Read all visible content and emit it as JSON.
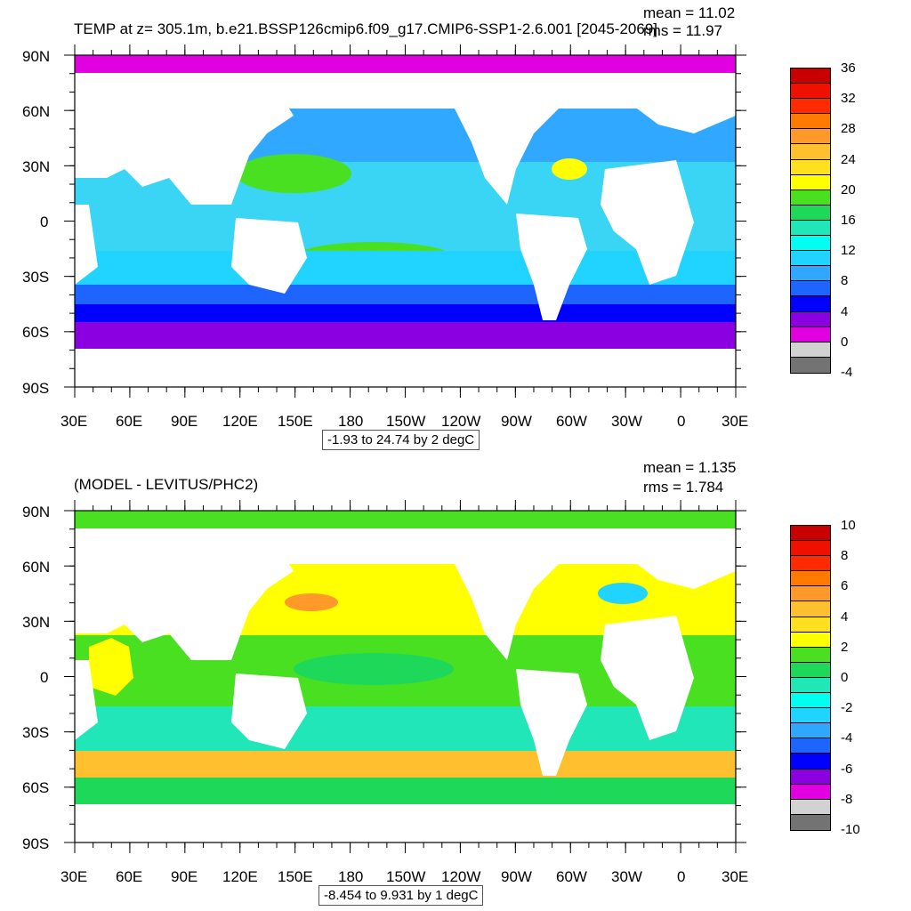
{
  "colors": {
    "ocean_top": "#3ad5f5",
    "ocean_bot": "#1fd96a",
    "land": "#ffffff"
  },
  "panels": [
    {
      "title": "TEMP at z= 305.1m, b.e21.BSSP126cmip6.f09_g17.CMIP6-SSP1-2.6.001 [2045-2069]",
      "stats_mean": "mean = 11.02",
      "stats_rms": "rms = 11.97",
      "range_label": "-1.93 to 24.74 by 2 degC",
      "lat_ticks": [
        "90N",
        "60N",
        "30N",
        "0",
        "30S",
        "60S",
        "90S"
      ],
      "lon_ticks": [
        "30E",
        "60E",
        "90E",
        "120E",
        "150E",
        "180",
        "150W",
        "120W",
        "90W",
        "60W",
        "30W",
        "0",
        "30E"
      ],
      "colorbar": {
        "labels": [
          "36",
          "32",
          "28",
          "24",
          "20",
          "16",
          "12",
          "8",
          "4",
          "0",
          "-4"
        ],
        "colors": [
          "#c80000",
          "#f01000",
          "#ff2a00",
          "#ff7a00",
          "#ff9a2a",
          "#ffc030",
          "#ffe020",
          "#ffff00",
          "#48e020",
          "#1ed85a",
          "#20e6b8",
          "#00fff0",
          "#20d4ff",
          "#30a8ff",
          "#1e64ff",
          "#0000ff",
          "#8a00e0",
          "#e000e0",
          "#d2d2d2",
          "#737373"
        ]
      }
    },
    {
      "title": "(MODEL - LEVITUS/PHC2)",
      "stats_mean": "mean = 1.135",
      "stats_rms": "rms = 1.784",
      "range_label": "-8.454 to 9.931 by 1 degC",
      "lat_ticks": [
        "90N",
        "60N",
        "30N",
        "0",
        "30S",
        "60S",
        "90S"
      ],
      "lon_ticks": [
        "30E",
        "60E",
        "90E",
        "120E",
        "150E",
        "180",
        "150W",
        "120W",
        "90W",
        "60W",
        "30W",
        "0",
        "30E"
      ],
      "colorbar": {
        "labels": [
          "10",
          "8",
          "6",
          "4",
          "2",
          "0",
          "-2",
          "-4",
          "-6",
          "-8",
          "-10"
        ],
        "colors": [
          "#c80000",
          "#f01000",
          "#ff2a00",
          "#ff7a00",
          "#ff9a2a",
          "#ffc030",
          "#ffe020",
          "#ffff00",
          "#48e020",
          "#1ed85a",
          "#20e6b8",
          "#00fff0",
          "#20d4ff",
          "#30a8ff",
          "#1e64ff",
          "#0000ff",
          "#8a00e0",
          "#e000e0",
          "#d2d2d2",
          "#737373"
        ]
      }
    }
  ]
}
